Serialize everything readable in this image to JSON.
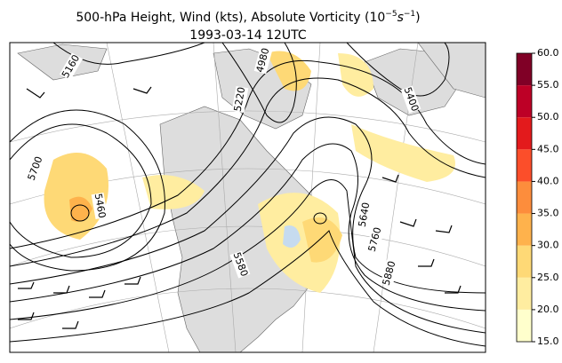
{
  "header": {
    "title_parts": [
      "500-hPa Height, Wind (kts), Absolute Vorticity (10",
      "−5",
      "s",
      "−1",
      ")"
    ],
    "subtitle": "1993-03-14 12UTC"
  },
  "map": {
    "contour_labels": [
      "5160",
      "4980",
      "5220",
      "5400",
      "5700",
      "5460",
      "5640",
      "5760",
      "5880",
      "5580"
    ]
  },
  "colorbar": {
    "lim": [
      15,
      60
    ],
    "ticks": [
      {
        "value": 15,
        "label": "15.0"
      },
      {
        "value": 20,
        "label": "20.0"
      },
      {
        "value": 25,
        "label": "25.0"
      },
      {
        "value": 30,
        "label": "30.0"
      },
      {
        "value": 35,
        "label": "35.0"
      },
      {
        "value": 40,
        "label": "40.0"
      },
      {
        "value": 45,
        "label": "45.0"
      },
      {
        "value": 50,
        "label": "50.0"
      },
      {
        "value": 55,
        "label": "55.0"
      },
      {
        "value": 60,
        "label": "60.0"
      }
    ],
    "colors": [
      "#ffffcc",
      "#ffeda0",
      "#fed976",
      "#feb24c",
      "#fd8d3c",
      "#fc4e2a",
      "#e31a1c",
      "#bd0026",
      "#800026"
    ]
  }
}
